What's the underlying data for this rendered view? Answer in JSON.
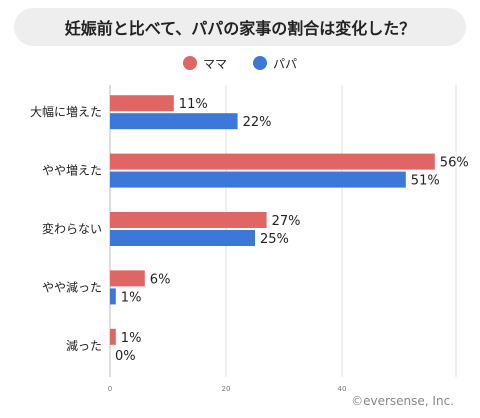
{
  "title": "妊娠前と比べて、パパの家事の割合は変化した？",
  "credit": "©eversense, Inc.",
  "colors": {
    "mama": "#e06666",
    "papa": "#3c78d8",
    "title_bg": "#eeeeee"
  },
  "chart_data": {
    "type": "bar",
    "orientation": "horizontal",
    "title": "妊娠前と比べて、パパの家事の割合は変化した？",
    "categories": [
      "大幅に増えた",
      "やや増えた",
      "変わらない",
      "やや減った",
      "減った"
    ],
    "series": [
      {
        "name": "ママ",
        "color": "#e06666",
        "values": [
          11,
          56,
          27,
          6,
          1
        ],
        "labels": [
          "11%",
          "56%",
          "27%",
          "6%",
          "1%"
        ]
      },
      {
        "name": "パパ",
        "color": "#3c78d8",
        "values": [
          22,
          51,
          25,
          1,
          0
        ],
        "labels": [
          "22%",
          "51%",
          "25%",
          "1%",
          "0%"
        ]
      }
    ],
    "xlim": [
      0,
      60
    ],
    "xticks": [
      0,
      20,
      40
    ],
    "legend": "top-center",
    "grid": true
  }
}
